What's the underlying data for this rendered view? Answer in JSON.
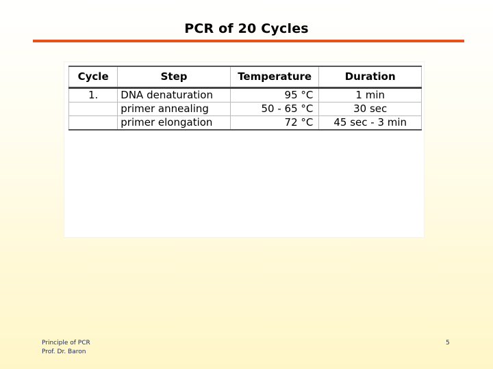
{
  "slide": {
    "title": "PCR of 20 Cycles",
    "accent_color": "#e8501e"
  },
  "table": {
    "headers": [
      "Cycle",
      "Step",
      "Temperature",
      "Duration"
    ],
    "rows": [
      [
        "1.",
        "DNA denaturation",
        "95 °C",
        "1  min"
      ],
      [
        "",
        "primer annealing",
        "50 - 65 °C",
        "30 sec"
      ],
      [
        "",
        "primer elongation",
        "72 °C",
        "45 sec - 3 min"
      ]
    ]
  },
  "footer": {
    "line1": "Principle of PCR",
    "line2": "Prof. Dr. Baron",
    "page_number": "5"
  }
}
